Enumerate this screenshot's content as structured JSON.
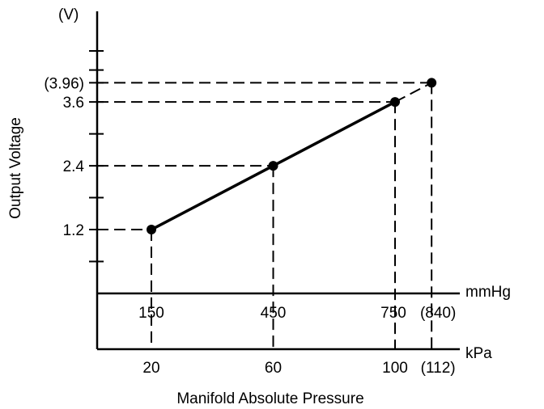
{
  "chart_data": {
    "type": "line",
    "ylabel": "Output Voltage",
    "yunit": "(V)",
    "xlabel": "Manifold Absolute Pressure",
    "x_units": {
      "primary": "kPa",
      "secondary": "mmHg"
    },
    "ylim": [
      0,
      4.8
    ],
    "xlim": [
      0,
      130
    ],
    "grid": false,
    "y_ticks": [
      {
        "value": 1.2,
        "label": "1.2"
      },
      {
        "value": 2.4,
        "label": "2.4"
      },
      {
        "value": 3.6,
        "label": "3.6"
      },
      {
        "value": 3.96,
        "label": "(3.96)"
      }
    ],
    "x_ticks_kpa": [
      {
        "value": 20,
        "label": "20"
      },
      {
        "value": 60,
        "label": "60"
      },
      {
        "value": 100,
        "label": "100"
      },
      {
        "value": 112,
        "label": "(112)"
      }
    ],
    "x_ticks_mmhg": [
      {
        "value": 20,
        "label": "150"
      },
      {
        "value": 60,
        "label": "450"
      },
      {
        "value": 100,
        "label": "750"
      },
      {
        "value": 112,
        "label": "(840)"
      }
    ],
    "series": [
      {
        "points": [
          {
            "kpa": 20,
            "mmhg": 150,
            "volts": 1.2
          },
          {
            "kpa": 60,
            "mmhg": 450,
            "volts": 2.4
          },
          {
            "kpa": 100,
            "mmhg": 750,
            "volts": 3.6
          },
          {
            "kpa": 112,
            "mmhg": 840,
            "volts": 3.96
          }
        ]
      }
    ]
  }
}
